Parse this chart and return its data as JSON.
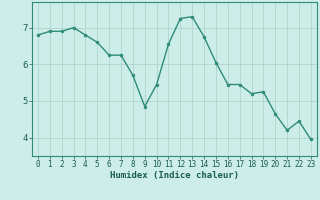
{
  "x": [
    0,
    1,
    2,
    3,
    4,
    5,
    6,
    7,
    8,
    9,
    10,
    11,
    12,
    13,
    14,
    15,
    16,
    17,
    18,
    19,
    20,
    21,
    22,
    23
  ],
  "y": [
    6.8,
    6.9,
    6.9,
    7.0,
    6.8,
    6.6,
    6.25,
    6.25,
    5.7,
    4.85,
    5.45,
    6.55,
    7.25,
    7.3,
    6.75,
    6.05,
    5.45,
    5.45,
    5.2,
    5.25,
    4.65,
    4.2,
    4.45,
    3.95
  ],
  "xlabel": "Humidex (Indice chaleur)",
  "ylim": [
    3.5,
    7.7
  ],
  "xlim": [
    -0.5,
    23.5
  ],
  "yticks": [
    4,
    5,
    6,
    7
  ],
  "xticks": [
    0,
    1,
    2,
    3,
    4,
    5,
    6,
    7,
    8,
    9,
    10,
    11,
    12,
    13,
    14,
    15,
    16,
    17,
    18,
    19,
    20,
    21,
    22,
    23
  ],
  "line_color": "#2e8b7a",
  "marker_color": "#2e8b7a",
  "bg_color": "#cdeee8",
  "grid_color": "#aed4cc",
  "axis_color": "#2e8b7a",
  "label_color": "#1a5c52",
  "tick_fontsize": 5.5,
  "xlabel_fontsize": 6.5
}
